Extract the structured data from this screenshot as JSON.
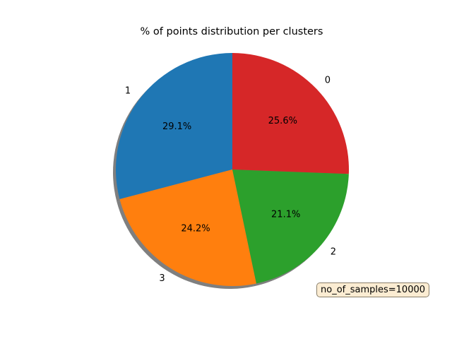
{
  "chart_data": {
    "type": "pie",
    "title": "% of points distribution per clusters",
    "start_angle_deg": 90,
    "direction": "counterclockwise",
    "shadow": true,
    "slices": [
      {
        "label": "1",
        "value": 29.1,
        "pct_label": "29.1%",
        "color": "#1f77b4"
      },
      {
        "label": "3",
        "value": 24.2,
        "pct_label": "24.2%",
        "color": "#ff7f0e"
      },
      {
        "label": "2",
        "value": 21.1,
        "pct_label": "21.1%",
        "color": "#2ca02c"
      },
      {
        "label": "0",
        "value": 25.6,
        "pct_label": "25.6%",
        "color": "#d62728"
      }
    ],
    "annotation": "no_of_samples=10000"
  }
}
